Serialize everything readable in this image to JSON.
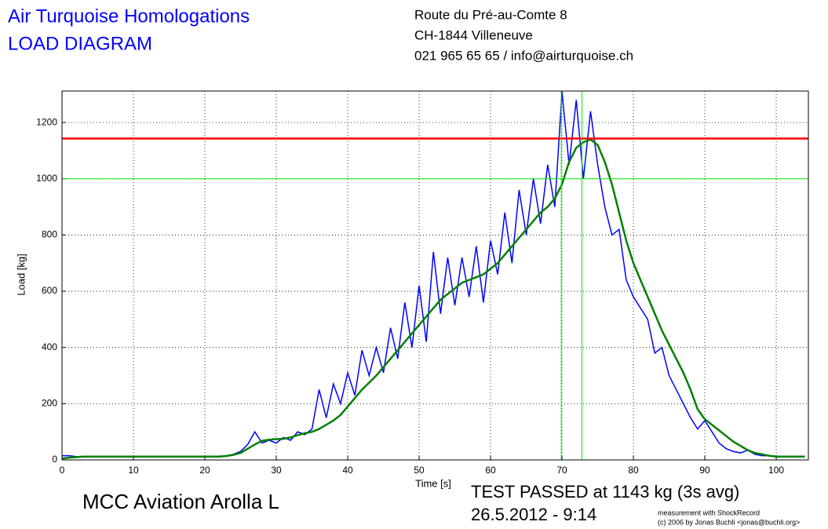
{
  "header": {
    "title": "Air Turquoise Homologations",
    "subtitle": "LOAD DIAGRAM",
    "address": [
      "Route du Pré-au-Comte 8",
      "CH-1844 Villeneuve",
      "021 965 65 65 / info@airturquoise.ch"
    ]
  },
  "footer": {
    "product": "MCC Aviation Arolla L",
    "result": "TEST PASSED at 1143 kg (3s avg)",
    "date": "26.5.2012 - 9:14",
    "credit": [
      "measurement with ShockRecord",
      "(c) 2006 by Jonas Buchli <jonas@buchli.org>"
    ]
  },
  "chart_data": {
    "type": "line",
    "xlabel": "Time [s]",
    "ylabel": "Load [kg]",
    "xlim": [
      0,
      104.5
    ],
    "ylim": [
      0,
      1312
    ],
    "xticks": [
      0,
      10,
      20,
      30,
      40,
      50,
      60,
      70,
      80,
      90,
      100
    ],
    "yticks": [
      0,
      200,
      400,
      600,
      800,
      1000,
      1200
    ],
    "grid": true,
    "x": [
      0,
      1,
      2,
      3,
      4,
      5,
      6,
      7,
      8,
      9,
      10,
      11,
      12,
      13,
      14,
      15,
      16,
      17,
      18,
      19,
      20,
      21,
      22,
      23,
      24,
      25,
      26,
      27,
      28,
      29,
      30,
      31,
      32,
      33,
      34,
      35,
      36,
      37,
      38,
      39,
      40,
      41,
      42,
      43,
      44,
      45,
      46,
      47,
      48,
      49,
      50,
      51,
      52,
      53,
      54,
      55,
      56,
      57,
      58,
      59,
      60,
      61,
      62,
      63,
      64,
      65,
      66,
      67,
      68,
      69,
      70,
      71,
      72,
      73,
      74,
      75,
      76,
      77,
      78,
      79,
      80,
      81,
      82,
      83,
      84,
      85,
      86,
      87,
      88,
      89,
      90,
      91,
      92,
      93,
      94,
      95,
      96,
      97,
      98,
      99,
      100,
      101,
      102,
      103,
      104
    ],
    "series": [
      {
        "color": "#0000ff",
        "width": 1.5,
        "values": [
          15,
          15,
          12,
          12,
          12,
          12,
          12,
          12,
          12,
          12,
          12,
          12,
          12,
          12,
          12,
          12,
          12,
          12,
          12,
          12,
          12,
          12,
          12,
          15,
          20,
          30,
          55,
          100,
          60,
          70,
          60,
          80,
          70,
          100,
          90,
          110,
          250,
          150,
          270,
          200,
          310,
          230,
          390,
          300,
          400,
          310,
          470,
          360,
          560,
          400,
          620,
          420,
          740,
          520,
          720,
          550,
          720,
          580,
          760,
          560,
          780,
          660,
          880,
          700,
          960,
          800,
          1000,
          840,
          1050,
          900,
          1310,
          1050,
          1280,
          1000,
          1240,
          1050,
          900,
          800,
          820,
          640,
          580,
          540,
          500,
          380,
          400,
          300,
          250,
          200,
          150,
          110,
          140,
          100,
          60,
          40,
          30,
          25,
          35,
          20,
          15,
          15,
          12,
          12,
          12,
          12,
          12
        ]
      },
      {
        "color": "#008000",
        "width": 2.5,
        "values": [
          5,
          8,
          10,
          12,
          12,
          12,
          12,
          12,
          12,
          12,
          12,
          12,
          12,
          12,
          12,
          12,
          12,
          12,
          12,
          12,
          12,
          12,
          12,
          14,
          18,
          25,
          40,
          55,
          68,
          72,
          74,
          75,
          80,
          88,
          95,
          100,
          110,
          125,
          140,
          160,
          190,
          220,
          250,
          275,
          300,
          330,
          360,
          390,
          420,
          450,
          480,
          510,
          540,
          570,
          590,
          610,
          630,
          640,
          650,
          660,
          680,
          700,
          730,
          760,
          790,
          820,
          850,
          880,
          900,
          930,
          980,
          1060,
          1110,
          1130,
          1140,
          1120,
          1060,
          980,
          880,
          780,
          700,
          640,
          580,
          520,
          460,
          410,
          360,
          310,
          250,
          180,
          145,
          125,
          105,
          85,
          65,
          50,
          35,
          25,
          20,
          15,
          12,
          12,
          12,
          12,
          12
        ]
      }
    ],
    "hlines": [
      {
        "value": 1143,
        "color": "#ff0000",
        "width": 2.5
      },
      {
        "value": 1000,
        "color": "#00ee00",
        "width": 1
      }
    ],
    "vlines": [
      {
        "value": 69.9,
        "color": "#00ee00"
      },
      {
        "value": 72.8,
        "color": "#00ee00"
      }
    ]
  }
}
